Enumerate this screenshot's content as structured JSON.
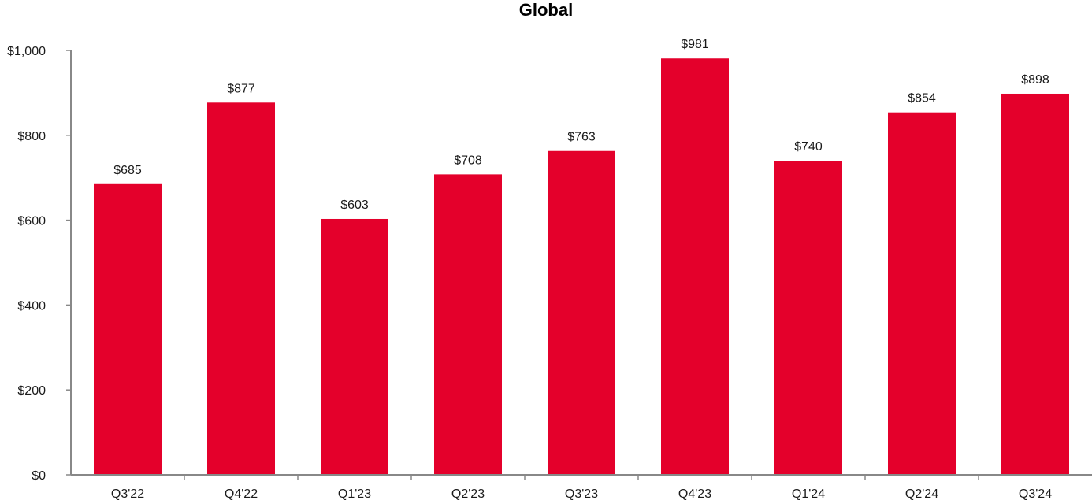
{
  "chart_data": {
    "type": "bar",
    "title": "Global",
    "xlabel": "",
    "ylabel": "",
    "categories": [
      "Q3'22",
      "Q4'22",
      "Q1'23",
      "Q2'23",
      "Q3'23",
      "Q4'23",
      "Q1'24",
      "Q2'24",
      "Q3'24"
    ],
    "values": [
      685,
      877,
      603,
      708,
      763,
      981,
      740,
      854,
      898
    ],
    "value_labels": [
      "$685",
      "$877",
      "$603",
      "$708",
      "$763",
      "$981",
      "$740",
      "$854",
      "$898"
    ],
    "ylim": [
      0,
      1000
    ],
    "yticks": [
      0,
      200,
      400,
      600,
      800,
      1000
    ],
    "ytick_labels": [
      "$0",
      "$200",
      "$400",
      "$600",
      "$800",
      "$1,000"
    ],
    "bar_color": "#E4002B",
    "grid": false,
    "legend": "none"
  }
}
